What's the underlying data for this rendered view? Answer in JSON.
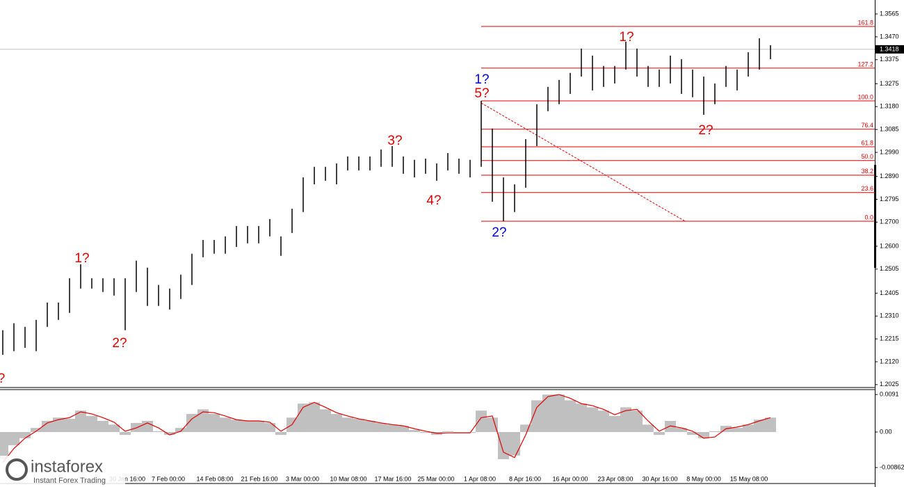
{
  "chart_data": [
    {
      "type": "ohlc",
      "color": "#000000",
      "high": [
        1.2251,
        1.228,
        1.2265,
        1.2294,
        1.2366,
        1.2366,
        1.2467,
        1.2525,
        1.2467,
        1.2467,
        1.2467,
        1.2467,
        1.254,
        1.2511,
        1.2439,
        1.2424,
        1.2482,
        1.2569,
        1.2626,
        1.2626,
        1.2641,
        1.2684,
        1.2684,
        1.2684,
        1.2713,
        1.2641,
        1.2756,
        1.2886,
        1.293,
        1.293,
        1.2944,
        1.2973,
        1.2973,
        1.2973,
        1.3002,
        1.3016,
        1.2973,
        1.2959,
        1.2964,
        1.2944,
        1.2987,
        1.2964,
        1.2959,
        1.3204,
        1.3089,
        1.2886,
        1.2857,
        1.3045,
        1.319,
        1.3262,
        1.3291,
        1.332,
        1.3421,
        1.3392,
        1.3349,
        1.3349,
        1.345,
        1.3421,
        1.3349,
        1.3334,
        1.3392,
        1.3377,
        1.3334,
        1.3305,
        1.3276,
        1.3349,
        1.3334,
        1.3406,
        1.3464,
        1.3435
      ],
      "low": [
        1.2149,
        1.2164,
        1.2178,
        1.2164,
        1.2265,
        1.2294,
        1.2323,
        1.2424,
        1.2424,
        1.241,
        1.2395,
        1.2251,
        1.241,
        1.2352,
        1.2352,
        1.2337,
        1.2381,
        1.2439,
        1.2554,
        1.2569,
        1.2569,
        1.2597,
        1.2612,
        1.2612,
        1.2641,
        1.256,
        1.2655,
        1.2742,
        1.2857,
        1.2872,
        1.2857,
        1.2915,
        1.2915,
        1.2915,
        1.293,
        1.293,
        1.2901,
        1.2886,
        1.2901,
        1.2872,
        1.2915,
        1.2901,
        1.2886,
        1.293,
        1.2785,
        1.2704,
        1.2742,
        1.2843,
        1.3016,
        1.3161,
        1.319,
        1.3233,
        1.3305,
        1.3247,
        1.3262,
        1.3276,
        1.3334,
        1.3305,
        1.3262,
        1.3262,
        1.3276,
        1.3233,
        1.3219,
        1.3146,
        1.319,
        1.3262,
        1.3247,
        1.3305,
        1.3334,
        1.3377
      ],
      "ylim": [
        1.2013,
        1.3623
      ],
      "yticks": [
        1.2025,
        {
          "value": 1.212,
          "label": "1.2120"
        },
        1.2215,
        {
          "value": 1.231,
          "label": "1.2310"
        },
        1.2405,
        1.2505,
        {
          "value": 1.26,
          "label": "1.2600"
        },
        {
          "value": 1.27,
          "label": "1.2700"
        },
        1.2795,
        {
          "value": 1.289,
          "label": "1.2890"
        },
        {
          "value": 1.299,
          "label": "1.2990"
        },
        1.3085,
        {
          "value": 1.318,
          "label": "1.3180"
        },
        1.3275,
        1.3375,
        {
          "value": 1.347,
          "label": "1.3470"
        },
        1.3565
      ],
      "last_price": 1.3418,
      "fib_levels": [
        {
          "label": "161.8",
          "price": 1.3513
        },
        {
          "label": "127.2",
          "price": 1.334
        },
        {
          "label": "100.0",
          "price": 1.3204
        },
        {
          "label": "76.4",
          "price": 1.3086
        },
        {
          "label": "61.8",
          "price": 1.3013
        },
        {
          "label": "50.0",
          "price": 1.2956
        },
        {
          "label": "38.2",
          "price": 1.2895
        },
        {
          "label": "23.6",
          "price": 1.2823
        },
        {
          "label": "0.0",
          "price": 1.2704
        }
      ],
      "trend_line": [
        1.3195,
        1.2704
      ],
      "annotations": [
        {
          "text": "?",
          "color": "#e00000"
        },
        {
          "text": "1?",
          "color": "#e00000"
        },
        {
          "text": "2?",
          "color": "#e00000"
        },
        {
          "text": "3?",
          "color": "#e00000"
        },
        {
          "text": "4?",
          "color": "#e00000"
        },
        {
          "text": "1?",
          "color": "#0000e0"
        },
        {
          "text": "5?",
          "color": "#e00000"
        },
        {
          "text": "2?",
          "color": "#0000e0"
        },
        {
          "text": "1?",
          "color": "#e00000"
        },
        {
          "text": "2?",
          "color": "#e00000"
        }
      ],
      "x_labels": [
        "30 Jan 16:00",
        "7 Feb 00:00",
        "14 Feb 08:00",
        "21 Feb 16:00",
        "3 Mar 00:00",
        "10 Mar 08:00",
        "17 Mar 16:00",
        "25 Mar 00:00",
        "1 Apr 08:00",
        "8 Apr 16:00",
        "16 Apr 00:00",
        "23 Apr 08:00",
        "30 Apr 16:00",
        "8 May 00:00",
        "15 May 08:00"
      ]
    },
    {
      "type": "macd",
      "histogram_color": "#c0c0c0",
      "signal_color": "#e00000",
      "histogram": [
        -0.0066,
        -0.0032,
        -0.0015,
        0.001,
        0.0027,
        0.0035,
        0.0032,
        0.0052,
        0.0039,
        0.0027,
        0.0018,
        -0.0007,
        0.0022,
        0.0027,
        0.0002,
        -0.0007,
        0.001,
        0.0044,
        0.0055,
        0.0044,
        0.0035,
        0.003,
        0.0027,
        0.0027,
        0.0022,
        -0.0007,
        0.0035,
        0.0069,
        0.0072,
        0.0055,
        0.0044,
        0.0035,
        0.0032,
        0.0027,
        0.0022,
        0.0018,
        0.0015,
        0.0005,
        -0.0002,
        -0.0007,
        0.0002,
        -0.0002,
        -0.0002,
        0.0052,
        0.0035,
        -0.0066,
        -0.0057,
        0.0018,
        0.0077,
        0.0091,
        0.0091,
        0.0077,
        0.0069,
        0.006,
        0.0052,
        0.0039,
        0.006,
        0.0052,
        0.0018,
        -0.0007,
        0.0027,
        0.001,
        -0.0007,
        -0.0015,
        0.0002,
        0.0015,
        0.001,
        0.0018,
        0.003,
        0.0035
      ],
      "signal": [
        -0.0074,
        -0.004,
        -0.0015,
        0.0002,
        0.0022,
        0.003,
        0.0035,
        0.0049,
        0.0044,
        0.0035,
        0.0024,
        0.0002,
        0.001,
        0.0022,
        0.001,
        -0.0007,
        0.0002,
        0.0032,
        0.0049,
        0.0047,
        0.0039,
        0.003,
        0.0027,
        0.0027,
        0.0024,
        0.0002,
        0.0018,
        0.006,
        0.0072,
        0.006,
        0.0047,
        0.0039,
        0.0032,
        0.0027,
        0.0022,
        0.0018,
        0.0015,
        0.0008,
        0.0002,
        -0.0003,
        -0.0002,
        -0.0002,
        -0.0002,
        0.0035,
        0.0039,
        -0.0049,
        -0.0062,
        -0.0007,
        0.006,
        0.0086,
        0.0091,
        0.0082,
        0.0069,
        0.0064,
        0.0055,
        0.0042,
        0.0052,
        0.0055,
        0.0027,
        0.0002,
        0.0015,
        0.001,
        0.0002,
        -0.0015,
        -0.0012,
        0.0008,
        0.0012,
        0.0018,
        0.0027,
        0.0035
      ],
      "ylim": [
        -0.0125,
        0.0103
      ],
      "yticks": [
        0.0091,
        {
          "value": 0,
          "label": "0.00"
        },
        -0.00862
      ]
    }
  ],
  "branding": {
    "name": "instaforex",
    "tagline": "Instant Forex Trading"
  }
}
